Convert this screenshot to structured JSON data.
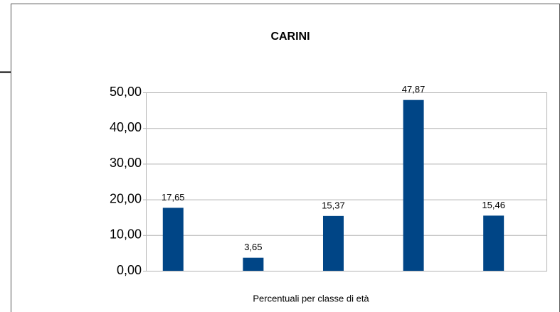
{
  "chart_data": {
    "type": "bar",
    "title": "CARINI",
    "x_label": "Percentuali per classe di età",
    "categories": [
      null,
      null,
      null,
      null,
      null
    ],
    "values": [
      17.65,
      3.65,
      15.37,
      47.87,
      15.46
    ],
    "value_labels": [
      "17,65",
      "3,65",
      "15,37",
      "47,87",
      "15,46"
    ],
    "color": "#004586",
    "ylim": [
      0,
      50
    ],
    "yticks": [
      {
        "value": 0,
        "label": "0,00"
      },
      {
        "value": 10,
        "label": "10,00"
      },
      {
        "value": 20,
        "label": "20,00"
      },
      {
        "value": 30,
        "label": "30,00"
      },
      {
        "value": 40,
        "label": "40,00"
      },
      {
        "value": 50,
        "label": "50,00"
      }
    ],
    "grid": true
  }
}
